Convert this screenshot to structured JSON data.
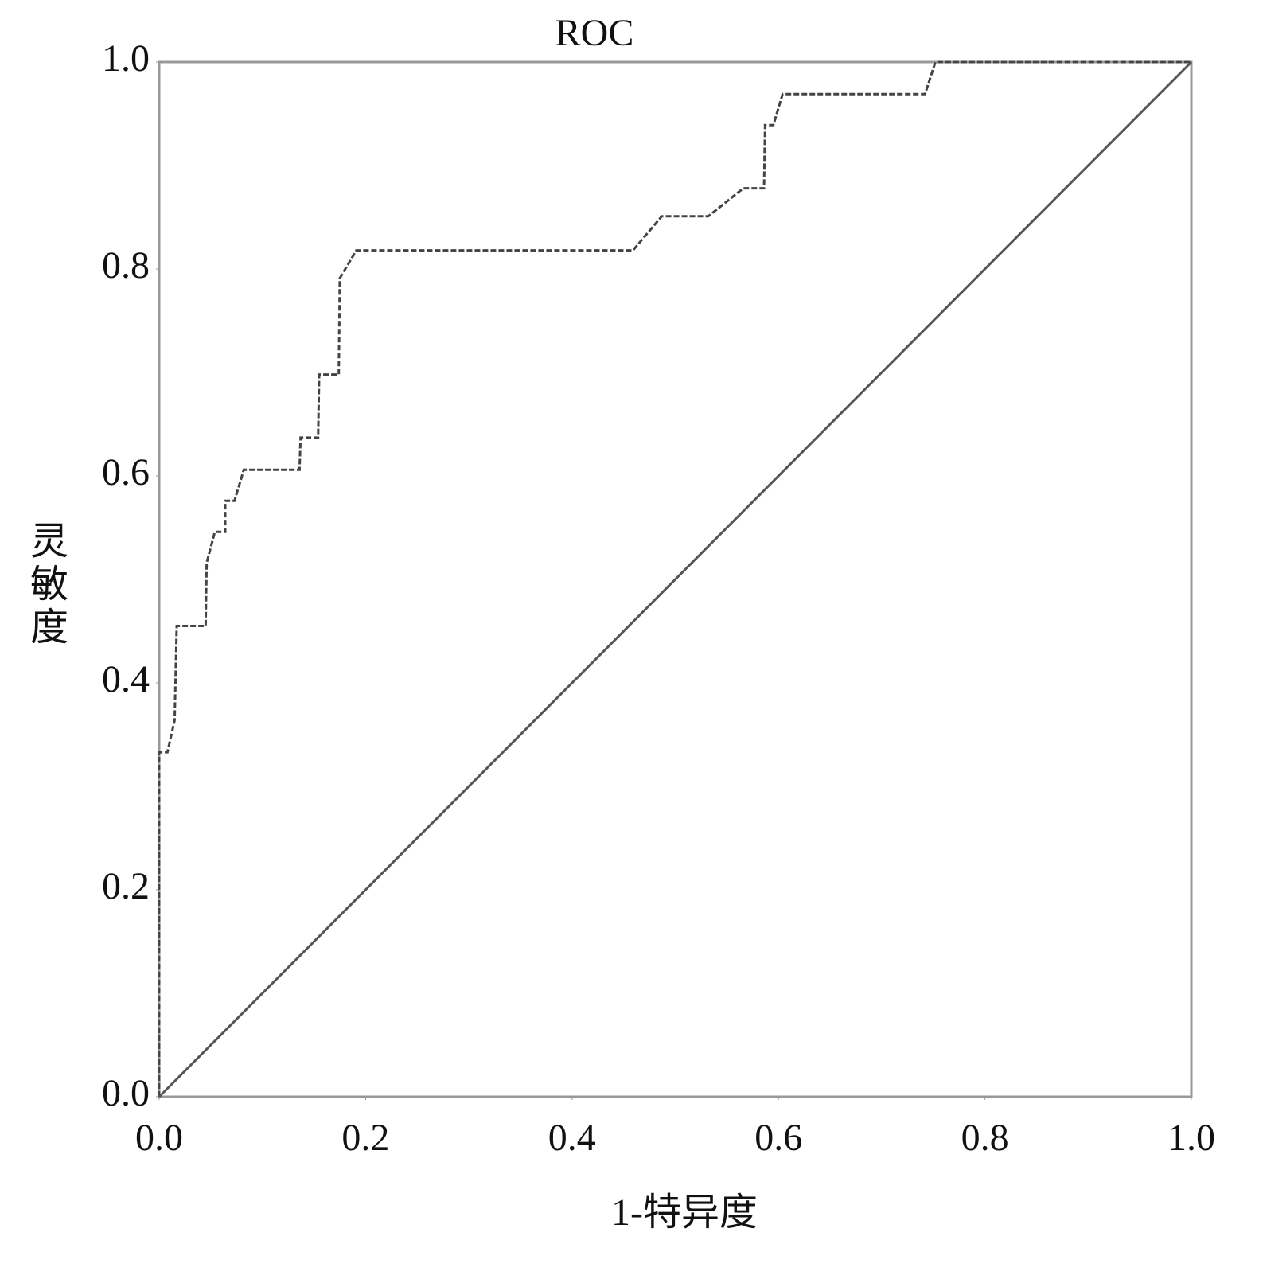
{
  "chart_data": {
    "type": "line",
    "title": "ROC",
    "x_label": "1-特异度",
    "y_label": "灵敏度",
    "series": [
      {
        "color": "#444444",
        "dash": true,
        "x": [
          0,
          0,
          0.008,
          0.015,
          0.017,
          0.045,
          0.046,
          0.054,
          0.064,
          0.064,
          0.073,
          0.082,
          0.136,
          0.137,
          0.154,
          0.155,
          0.174,
          0.175,
          0.191,
          0.459,
          0.487,
          0.532,
          0.566,
          0.586,
          0.587,
          0.595,
          0.604,
          0.742,
          0.752,
          1
        ],
        "values": [
          0,
          0.333,
          0.333,
          0.364,
          0.455,
          0.455,
          0.516,
          0.546,
          0.546,
          0.576,
          0.576,
          0.606,
          0.606,
          0.637,
          0.637,
          0.698,
          0.698,
          0.791,
          0.818,
          0.818,
          0.851,
          0.851,
          0.878,
          0.878,
          0.939,
          0.939,
          0.969,
          0.969,
          1,
          1
        ]
      },
      {
        "color": "#555555",
        "dash": false,
        "x": [
          0,
          1
        ],
        "values": [
          0,
          1
        ]
      }
    ],
    "xlim": [
      0,
      1
    ],
    "ylim": [
      0,
      1
    ],
    "xticks": [
      {
        "value": 0,
        "label": "0.0"
      },
      0.2,
      0.4,
      0.6,
      0.8,
      {
        "value": 1,
        "label": "1.0"
      }
    ],
    "yticks": [
      {
        "value": 0,
        "label": "0.0"
      },
      0.2,
      0.4,
      0.6,
      0.8,
      {
        "value": 1,
        "label": "1.0"
      }
    ],
    "grid": false
  }
}
